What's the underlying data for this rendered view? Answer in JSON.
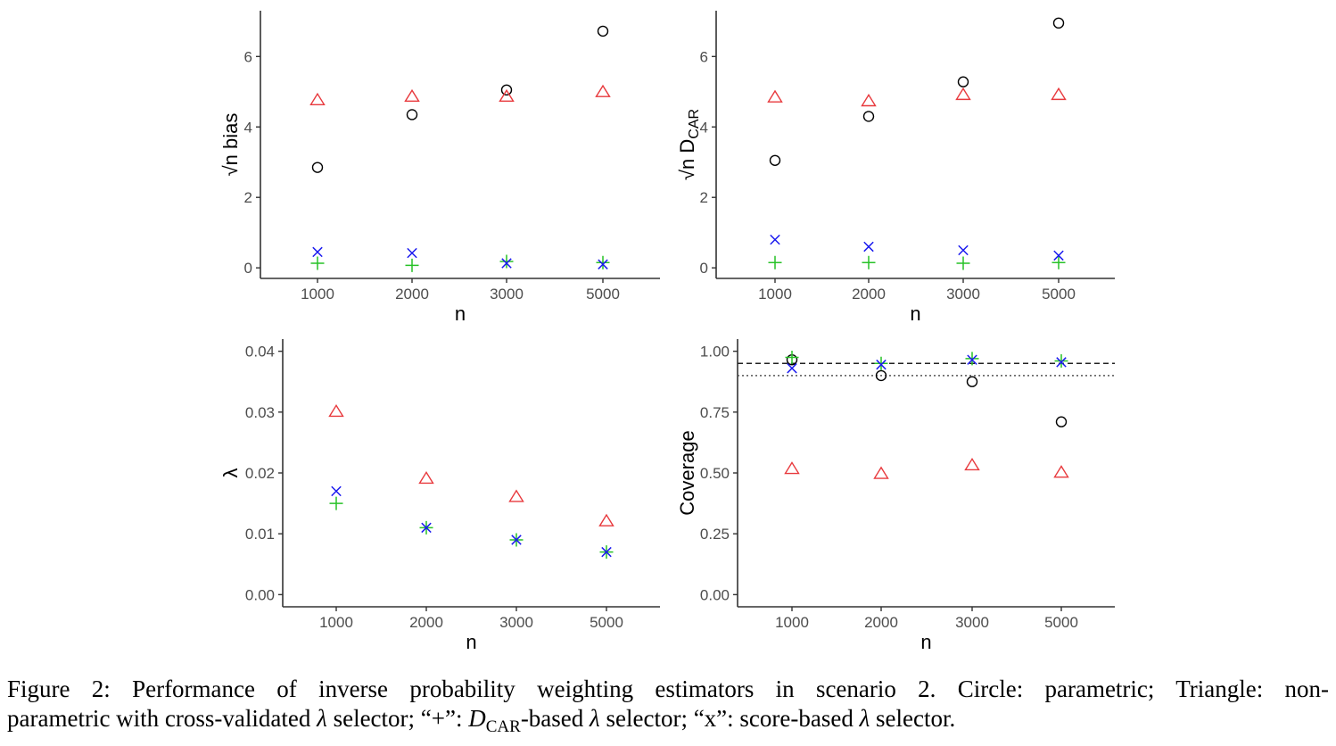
{
  "chart_data": [
    {
      "type": "scatter",
      "xlabel": "n",
      "ylabel_prefix": "√n",
      "ylabel": "bias",
      "categories": [
        "1000",
        "2000",
        "3000",
        "5000"
      ],
      "yticks": [
        "0",
        "2",
        "4",
        "6"
      ],
      "ylim": [
        -0.3,
        7.3
      ],
      "series": [
        {
          "name": "Circle",
          "symbol": "circle",
          "color": "#000000",
          "values": [
            2.85,
            4.35,
            5.05,
            6.72
          ]
        },
        {
          "name": "Triangle",
          "symbol": "triangle",
          "color": "#e8393d",
          "values": [
            4.75,
            4.85,
            4.85,
            4.98
          ]
        },
        {
          "name": "+",
          "symbol": "plus",
          "color": "#27c227",
          "values": [
            0.13,
            0.07,
            0.18,
            0.15
          ]
        },
        {
          "name": "x",
          "symbol": "cross",
          "color": "#1a1aef",
          "values": [
            0.45,
            0.42,
            0.13,
            0.1
          ]
        }
      ],
      "hlines": []
    },
    {
      "type": "scatter",
      "xlabel": "n",
      "ylabel_prefix": "√n",
      "ylabel": "D",
      "ylabel_sub": "CAR",
      "categories": [
        "1000",
        "2000",
        "3000",
        "5000"
      ],
      "yticks": [
        "0",
        "2",
        "4",
        "6"
      ],
      "ylim": [
        -0.3,
        7.3
      ],
      "series": [
        {
          "name": "Circle",
          "symbol": "circle",
          "color": "#000000",
          "values": [
            3.05,
            4.3,
            5.28,
            6.95
          ]
        },
        {
          "name": "Triangle",
          "symbol": "triangle",
          "color": "#e8393d",
          "values": [
            4.83,
            4.72,
            4.9,
            4.9
          ]
        },
        {
          "name": "+",
          "symbol": "plus",
          "color": "#27c227",
          "values": [
            0.15,
            0.15,
            0.13,
            0.15
          ]
        },
        {
          "name": "x",
          "symbol": "cross",
          "color": "#1a1aef",
          "values": [
            0.8,
            0.6,
            0.5,
            0.35
          ]
        }
      ],
      "hlines": []
    },
    {
      "type": "scatter",
      "xlabel": "n",
      "ylabel": "λ",
      "categories": [
        "1000",
        "2000",
        "3000",
        "5000"
      ],
      "yticks": [
        "0.00",
        "0.01",
        "0.02",
        "0.03",
        "0.04"
      ],
      "ylim": [
        -0.002,
        0.042
      ],
      "series": [
        {
          "name": "Triangle",
          "symbol": "triangle",
          "color": "#e8393d",
          "values": [
            0.03,
            0.019,
            0.016,
            0.012
          ]
        },
        {
          "name": "+",
          "symbol": "plus",
          "color": "#27c227",
          "values": [
            0.015,
            0.011,
            0.009,
            0.007
          ]
        },
        {
          "name": "x",
          "symbol": "cross",
          "color": "#1a1aef",
          "values": [
            0.017,
            0.011,
            0.009,
            0.007
          ]
        }
      ],
      "hlines": []
    },
    {
      "type": "scatter",
      "xlabel": "n",
      "ylabel": "Coverage",
      "categories": [
        "1000",
        "2000",
        "3000",
        "5000"
      ],
      "yticks": [
        "0.00",
        "0.25",
        "0.50",
        "0.75",
        "1.00"
      ],
      "ylim": [
        -0.05,
        1.05
      ],
      "series": [
        {
          "name": "Circle",
          "symbol": "circle",
          "color": "#000000",
          "values": [
            0.965,
            0.9,
            0.875,
            0.71
          ]
        },
        {
          "name": "Triangle",
          "symbol": "triangle",
          "color": "#e8393d",
          "values": [
            0.515,
            0.495,
            0.53,
            0.5
          ]
        },
        {
          "name": "+",
          "symbol": "plus",
          "color": "#27c227",
          "values": [
            0.975,
            0.95,
            0.97,
            0.96
          ]
        },
        {
          "name": "x",
          "symbol": "cross",
          "color": "#1a1aef",
          "values": [
            0.93,
            0.945,
            0.965,
            0.955
          ]
        }
      ],
      "hlines": [
        {
          "value": 0.95,
          "style": "dashed"
        },
        {
          "value": 0.9,
          "style": "dotted"
        }
      ]
    }
  ],
  "caption": {
    "line1": "Figure 2: Performance of inverse probability weighting estimators in scenario 2. Circle: parametric; Triangle: non-",
    "line2_a": "parametric with cross-validated ",
    "lambda": "λ",
    "line2_b": " selector; “+”: ",
    "d": "D",
    "car": "CAR",
    "line2_c": "-based ",
    "line2_d": " selector; “x”: score-based ",
    "line2_e": " selector."
  }
}
